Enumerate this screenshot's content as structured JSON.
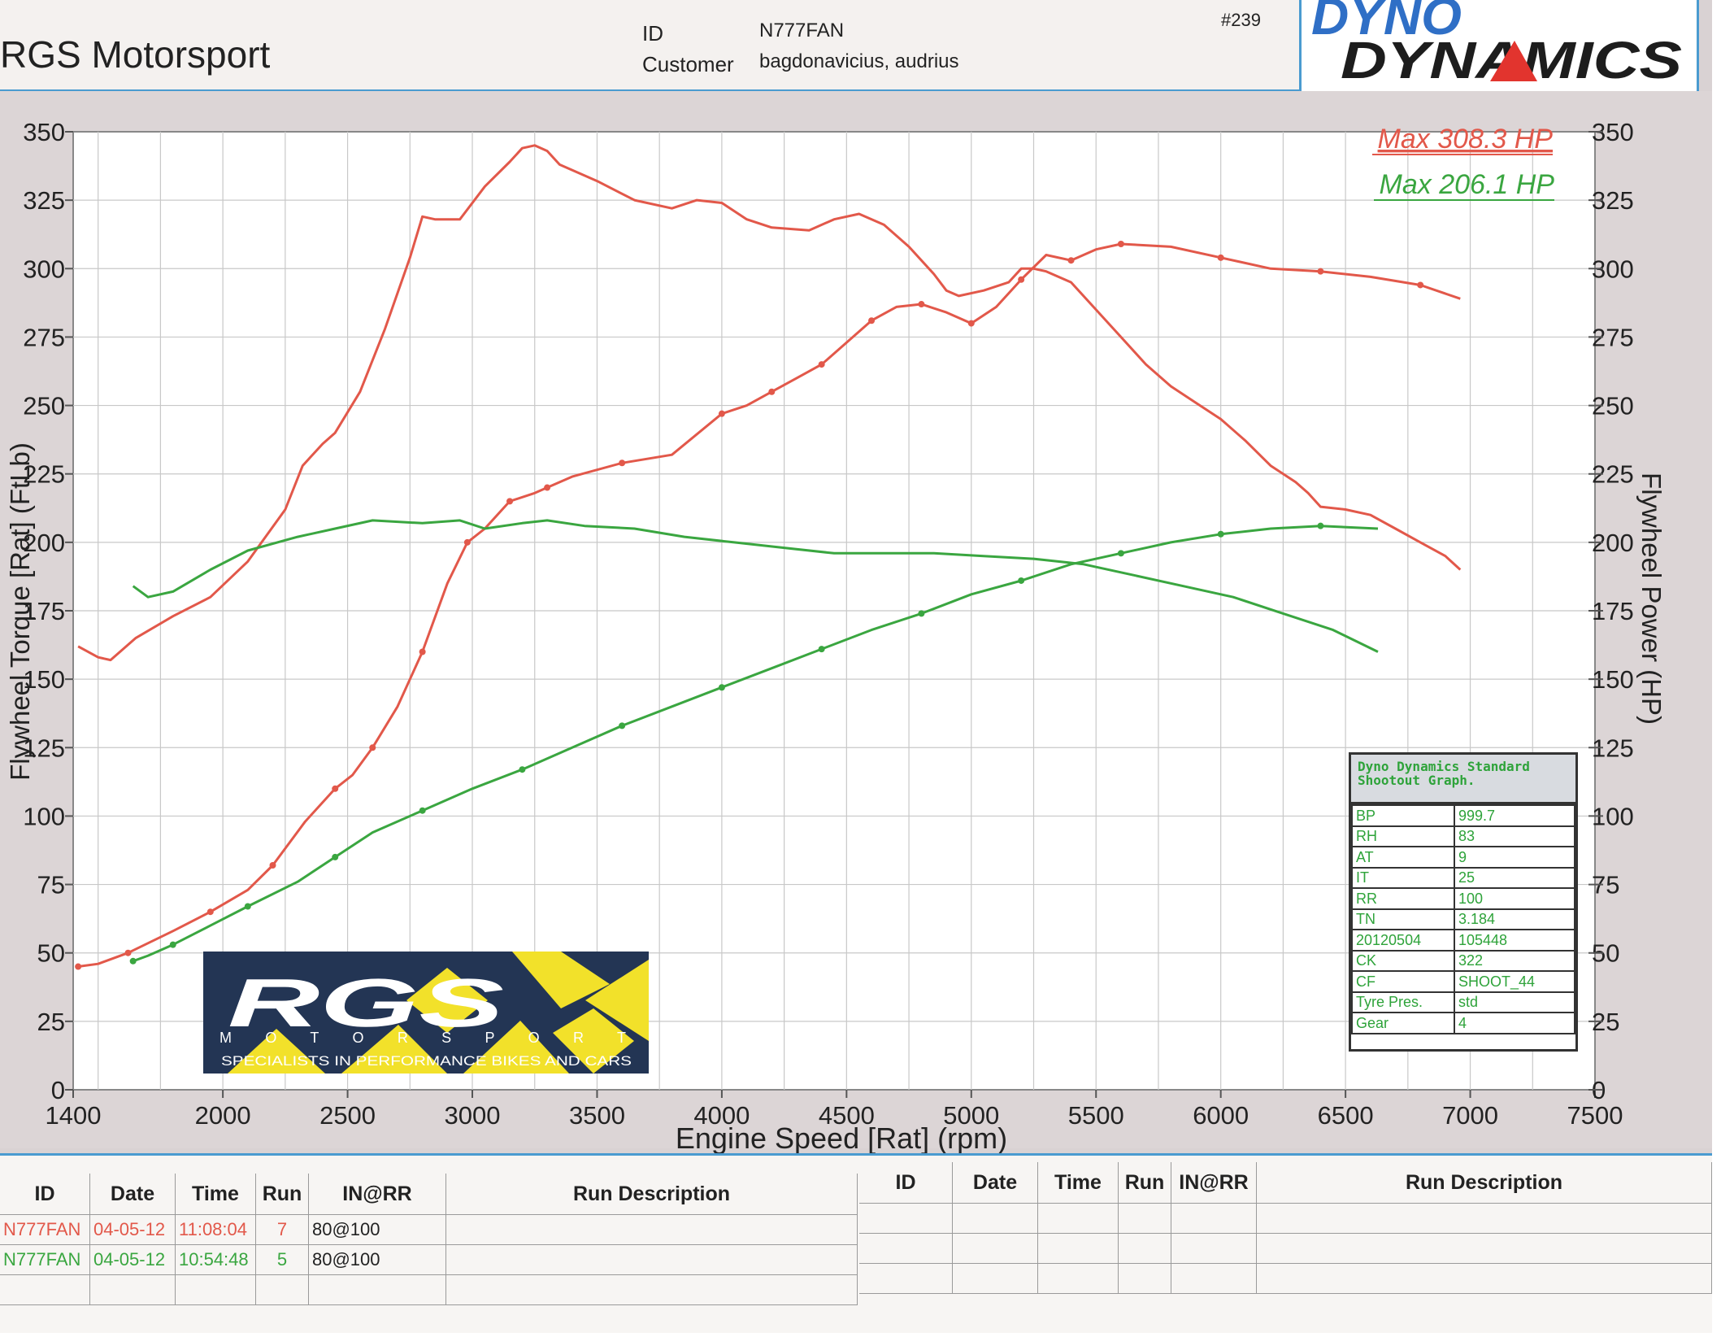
{
  "header": {
    "company": "RGS Motorsport",
    "id_label": "ID",
    "id_value": "N777FAN",
    "customer_label": "Customer",
    "customer_value": "bagdonavicius, audrius",
    "report_number": "#239",
    "brand_top": "DYNO",
    "brand_bottom": "DYNAMICS"
  },
  "legend": {
    "max_red": "Max 308.3 HP",
    "max_green": "Max 206.1 HP"
  },
  "colors": {
    "red": "#e2584a",
    "green": "#3aa640",
    "brand_blue": "#2f6fc6",
    "frame_blue": "#4a9bd0"
  },
  "chart_data": {
    "type": "line",
    "xlabel": "Engine Speed [Rat] (rpm)",
    "ylabel_left": "Flywheel Torque [Rat] (FtLb)",
    "ylabel_right": "Flywheel Power (HP)",
    "xlim": [
      1400,
      7500
    ],
    "ylim_left": [
      0,
      350
    ],
    "ylim_right": [
      0,
      350
    ],
    "x_ticks": [
      "1400",
      "2000",
      "2500",
      "3000",
      "3500",
      "4000",
      "4500",
      "5000",
      "5500",
      "6000",
      "6500",
      "7000",
      "7500"
    ],
    "y_ticks": [
      "0",
      "25",
      "50",
      "75",
      "100",
      "125",
      "150",
      "175",
      "200",
      "225",
      "250",
      "275",
      "300",
      "325",
      "350"
    ],
    "grid": true,
    "series": [
      {
        "color": "red",
        "axis": "left",
        "x": [
          1420,
          1500,
          1550,
          1650,
          1800,
          1950,
          2100,
          2250,
          2320,
          2400,
          2450,
          2550,
          2650,
          2750,
          2800,
          2850,
          2950,
          3050,
          3150,
          3200,
          3250,
          3300,
          3350,
          3500,
          3650,
          3800,
          3900,
          4000,
          4100,
          4200,
          4350,
          4450,
          4550,
          4650,
          4750,
          4850,
          4900,
          4950,
          5050,
          5150,
          5200,
          5250,
          5300,
          5400,
          5500,
          5600,
          5700,
          5800,
          5900,
          6000,
          6100,
          6200,
          6300,
          6350,
          6400,
          6500,
          6600,
          6700,
          6800,
          6900,
          6960
        ],
        "y": [
          162,
          158,
          157,
          165,
          173,
          180,
          193,
          212,
          228,
          236,
          240,
          255,
          278,
          304,
          319,
          318,
          318,
          330,
          339,
          344,
          345,
          343,
          338,
          332,
          325,
          322,
          325,
          324,
          318,
          315,
          314,
          318,
          320,
          316,
          308,
          298,
          292,
          290,
          292,
          295,
          300,
          300,
          299,
          295,
          285,
          275,
          265,
          257,
          251,
          245,
          237,
          228,
          222,
          218,
          213,
          212,
          210,
          205,
          200,
          195,
          190
        ]
      },
      {
        "color": "red",
        "axis": "right",
        "x": [
          1420,
          1500,
          1620,
          1800,
          1950,
          2100,
          2200,
          2330,
          2450,
          2520,
          2600,
          2700,
          2800,
          2900,
          2980,
          3050,
          3150,
          3250,
          3300,
          3400,
          3600,
          3800,
          4000,
          4100,
          4200,
          4300,
          4400,
          4500,
          4600,
          4700,
          4800,
          4900,
          5000,
          5100,
          5200,
          5300,
          5400,
          5500,
          5600,
          5800,
          6000,
          6200,
          6400,
          6600,
          6800,
          6960
        ],
        "y": [
          45,
          46,
          50,
          58,
          65,
          73,
          82,
          98,
          110,
          115,
          125,
          140,
          160,
          185,
          200,
          205,
          215,
          218,
          220,
          224,
          229,
          232,
          247,
          250,
          255,
          260,
          265,
          273,
          281,
          286,
          287,
          284,
          280,
          286,
          296,
          305,
          303,
          307,
          309,
          308,
          304,
          300,
          299,
          297,
          294,
          289
        ]
      },
      {
        "color": "green",
        "axis": "left",
        "x": [
          1640,
          1700,
          1800,
          1950,
          2100,
          2300,
          2450,
          2600,
          2800,
          2950,
          3050,
          3200,
          3300,
          3450,
          3650,
          3850,
          4050,
          4250,
          4450,
          4650,
          4850,
          5050,
          5250,
          5450,
          5650,
          5850,
          6050,
          6250,
          6450,
          6630
        ],
        "y": [
          184,
          180,
          182,
          190,
          197,
          202,
          205,
          208,
          207,
          208,
          205,
          207,
          208,
          206,
          205,
          202,
          200,
          198,
          196,
          196,
          196,
          195,
          194,
          192,
          188,
          184,
          180,
          174,
          168,
          160
        ]
      },
      {
        "color": "green",
        "axis": "right",
        "x": [
          1640,
          1700,
          1800,
          1950,
          2100,
          2300,
          2450,
          2600,
          2800,
          3000,
          3200,
          3400,
          3600,
          3800,
          4000,
          4200,
          4400,
          4600,
          4800,
          5000,
          5200,
          5400,
          5600,
          5800,
          6000,
          6200,
          6400,
          6630
        ],
        "y": [
          47,
          49,
          53,
          60,
          67,
          76,
          85,
          94,
          102,
          110,
          117,
          125,
          133,
          140,
          147,
          154,
          161,
          168,
          174,
          181,
          186,
          192,
          196,
          200,
          203,
          205,
          206,
          205
        ]
      }
    ]
  },
  "rgs_logo": {
    "text": "RGS",
    "subtitle": "M O T O R S P O R T",
    "tagline": "SPECIALISTS IN PERFORMANCE BIKES AND CARS"
  },
  "std_box": {
    "title": "Dyno Dynamics Standard Shootout Graph.",
    "rows": [
      [
        "BP",
        "999.7"
      ],
      [
        "RH",
        "83"
      ],
      [
        "AT",
        "9"
      ],
      [
        "IT",
        "25"
      ],
      [
        "RR",
        "100"
      ],
      [
        "TN",
        "3.184"
      ],
      [
        "20120504",
        "105448"
      ],
      [
        "CK",
        "322"
      ],
      [
        "CF",
        "SHOOT_44"
      ],
      [
        "Tyre Pres.",
        "std"
      ],
      [
        "Gear",
        "4"
      ]
    ]
  },
  "run_table": {
    "headers": [
      "ID",
      "Date",
      "Time",
      "Run",
      "IN@RR",
      "Run Description"
    ],
    "rows": [
      {
        "id": "N777FAN",
        "date": "04-05-12",
        "time": "11:08:04",
        "run": "7",
        "inrr": "80@100",
        "color": "red"
      },
      {
        "id": "N777FAN",
        "date": "04-05-12",
        "time": "10:54:48",
        "run": "5",
        "inrr": "80@100",
        "color": "green"
      }
    ]
  }
}
